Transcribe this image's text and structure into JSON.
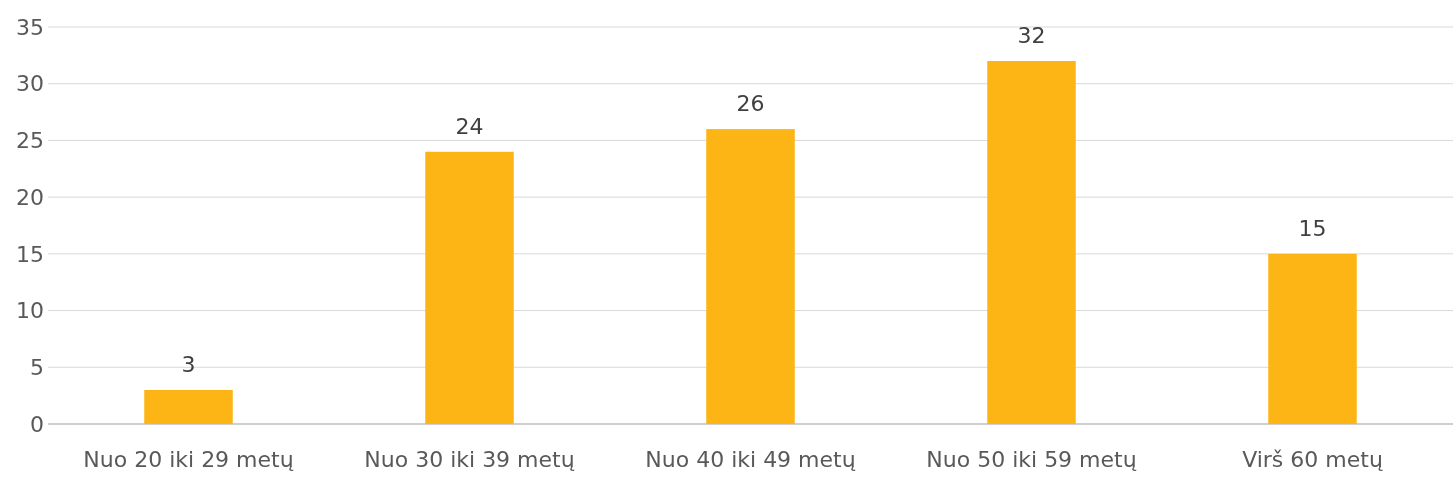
{
  "chart_data": {
    "type": "bar",
    "categories": [
      "Nuo 20 iki 29 metų",
      "Nuo 30 iki 39 metų",
      "Nuo 40 iki 49 metų",
      "Nuo 50 iki 59 metų",
      "Virš 60 metų"
    ],
    "values": [
      3,
      24,
      26,
      32,
      15
    ],
    "data_labels": true,
    "color": "#fdb515",
    "ylim": [
      0,
      35
    ],
    "yticks": [
      0,
      5,
      10,
      15,
      20,
      25,
      30,
      35
    ],
    "grid": "y"
  }
}
